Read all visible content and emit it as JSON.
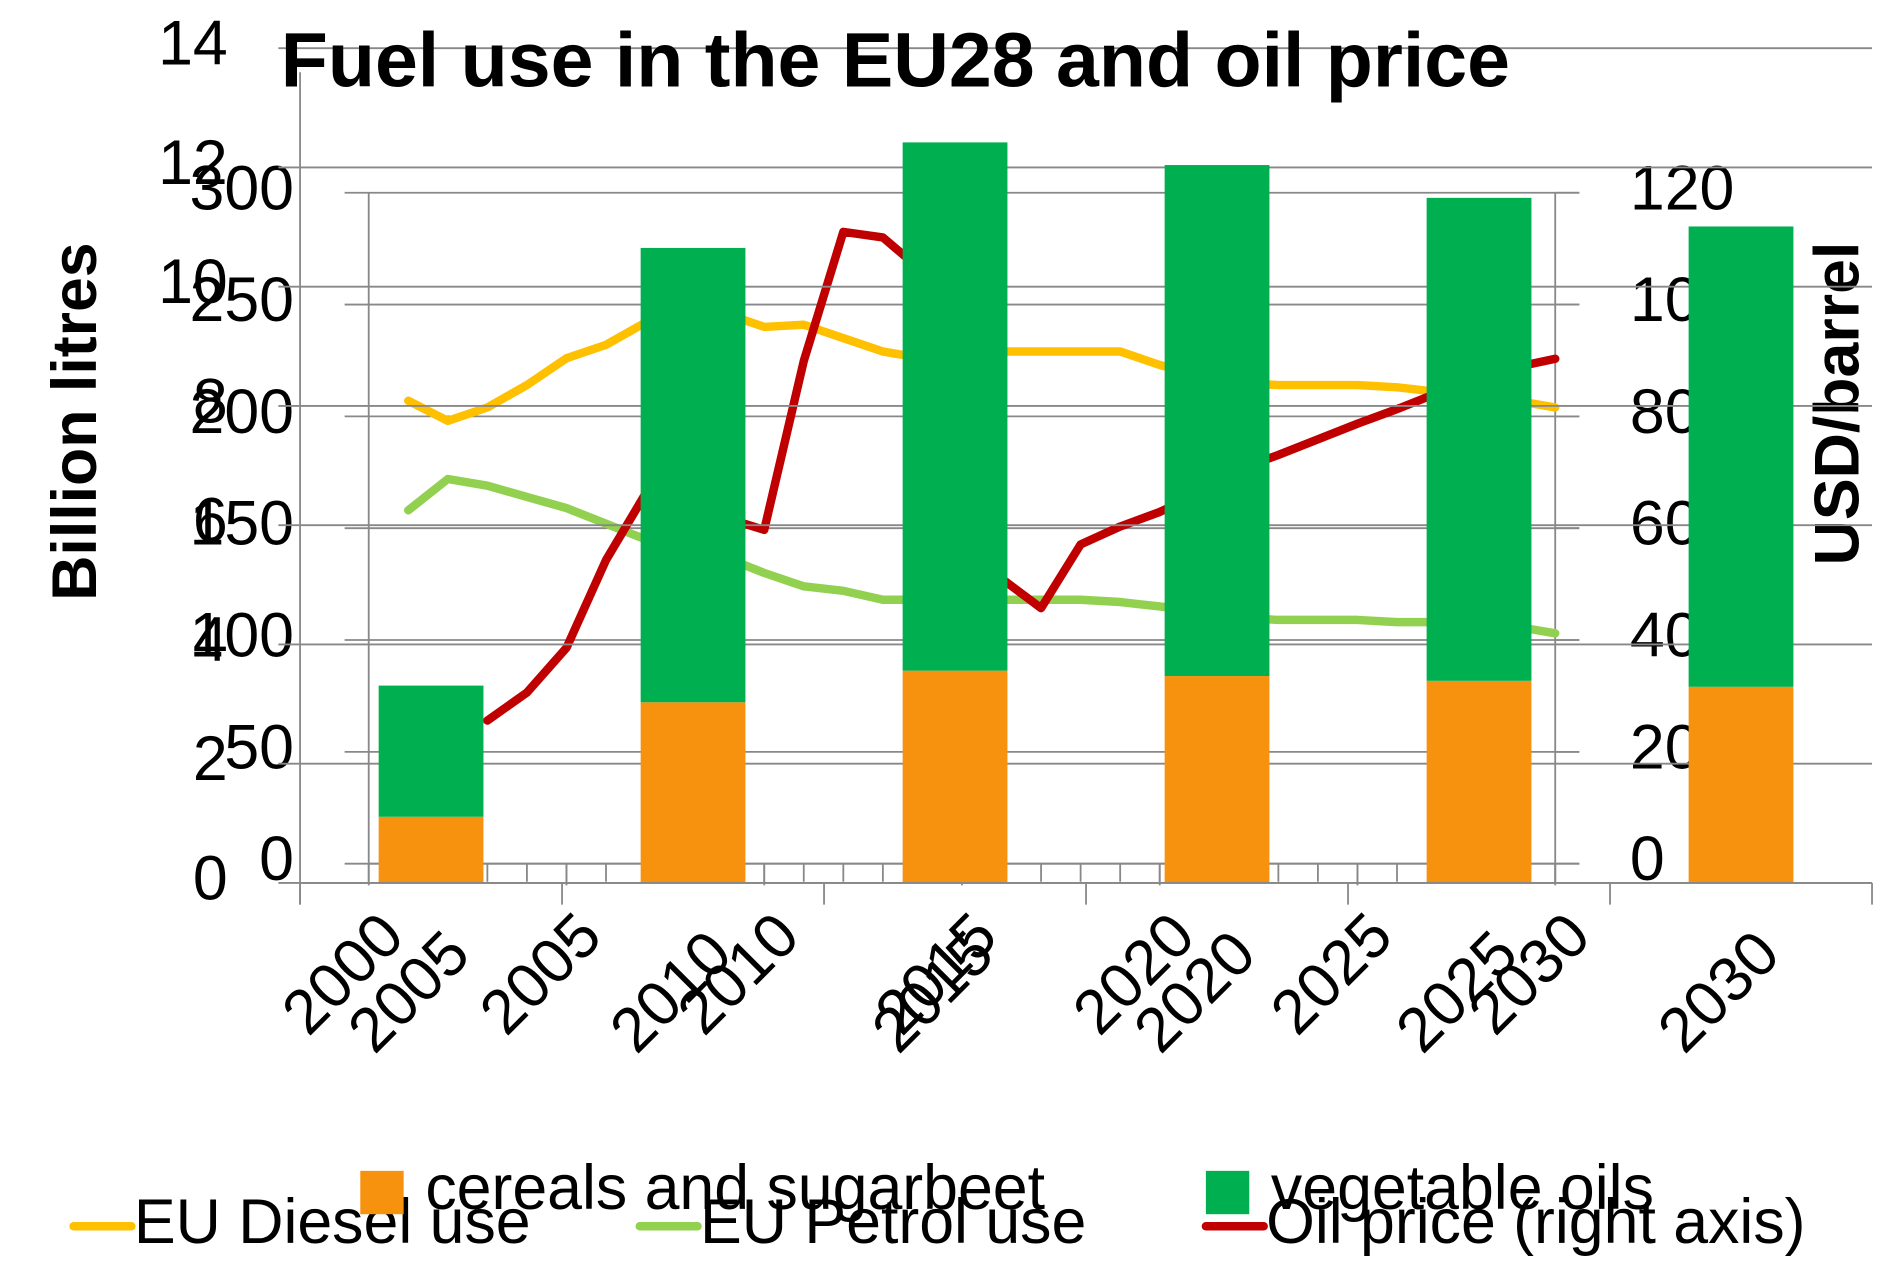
{
  "chart_data": [
    {
      "type": "line",
      "y_label": "Billion litres",
      "y2_label": "USD/barrel",
      "x": [
        2001,
        2002,
        2003,
        2004,
        2005,
        2006,
        2007,
        2008,
        2009,
        2010,
        2011,
        2012,
        2013,
        2014,
        2015,
        2016,
        2017,
        2018,
        2019,
        2020,
        2021,
        2022,
        2023,
        2024,
        2025,
        2026,
        2027,
        2028,
        2029,
        2030
      ],
      "xlim": [
        2000,
        2030
      ],
      "xticks": [
        2000,
        2005,
        2010,
        2015,
        2020,
        2025,
        2030
      ],
      "ylim": [
        0,
        300
      ],
      "yticks": [
        0,
        50,
        100,
        150,
        200,
        250,
        300
      ],
      "y2lim": [
        0,
        120
      ],
      "y2ticks": [
        0,
        20,
        40,
        60,
        80,
        100,
        120
      ],
      "grid": true,
      "legend": "bottom",
      "series": [
        {
          "name": "EU Diesel use",
          "color": "#ffc000",
          "values": [
            207,
            198,
            204,
            214,
            226,
            232,
            242,
            249,
            246,
            240,
            241,
            235,
            229,
            226,
            228,
            229,
            229,
            229,
            229,
            223,
            218,
            215,
            214,
            214,
            214,
            213,
            211,
            208,
            207,
            204
          ]
        },
        {
          "name": "EU Petrol use",
          "color": "#92d050",
          "values": [
            158,
            172,
            169,
            164,
            159,
            152,
            145,
            141,
            137,
            130,
            124,
            122,
            118,
            118,
            118,
            118,
            118,
            118,
            117,
            115,
            113,
            110,
            109,
            109,
            109,
            108,
            108,
            107,
            106,
            103
          ]
        },
        {
          "name": "Oil price (right axis)",
          "color": "#c00000",
          "axis": "y2",
          "values": [
            null,
            null,
            25.6,
            30.6,
            38.6,
            54.3,
            66.2,
            71.6,
            61.9,
            59.7,
            89.9,
            113,
            112,
            106,
            90,
            51,
            45.7,
            57.1,
            60.3,
            62.9,
            66.2,
            70.5,
            73.1,
            75.9,
            78.7,
            81.3,
            84.1,
            86.6,
            88.8,
            90.3
          ]
        }
      ]
    },
    {
      "type": "bar",
      "stacked": true,
      "title": "Fuel use in the EU28 and oil price",
      "categories": [
        "2005",
        "2010",
        "2015",
        "2020",
        "2025",
        "2030"
      ],
      "ylim": [
        0,
        14
      ],
      "yticks": [
        0,
        2,
        4,
        6,
        8,
        10,
        12,
        14
      ],
      "grid": true,
      "legend": "bottom",
      "series": [
        {
          "name": "cereals and sugarbeet",
          "color": "#f7920f",
          "values": [
            1.11,
            3.03,
            3.56,
            3.47,
            3.39,
            3.29
          ]
        },
        {
          "name": "vegetable oils",
          "color": "#00b050",
          "values": [
            2.2,
            7.62,
            8.86,
            8.57,
            8.1,
            7.72
          ]
        }
      ]
    }
  ]
}
